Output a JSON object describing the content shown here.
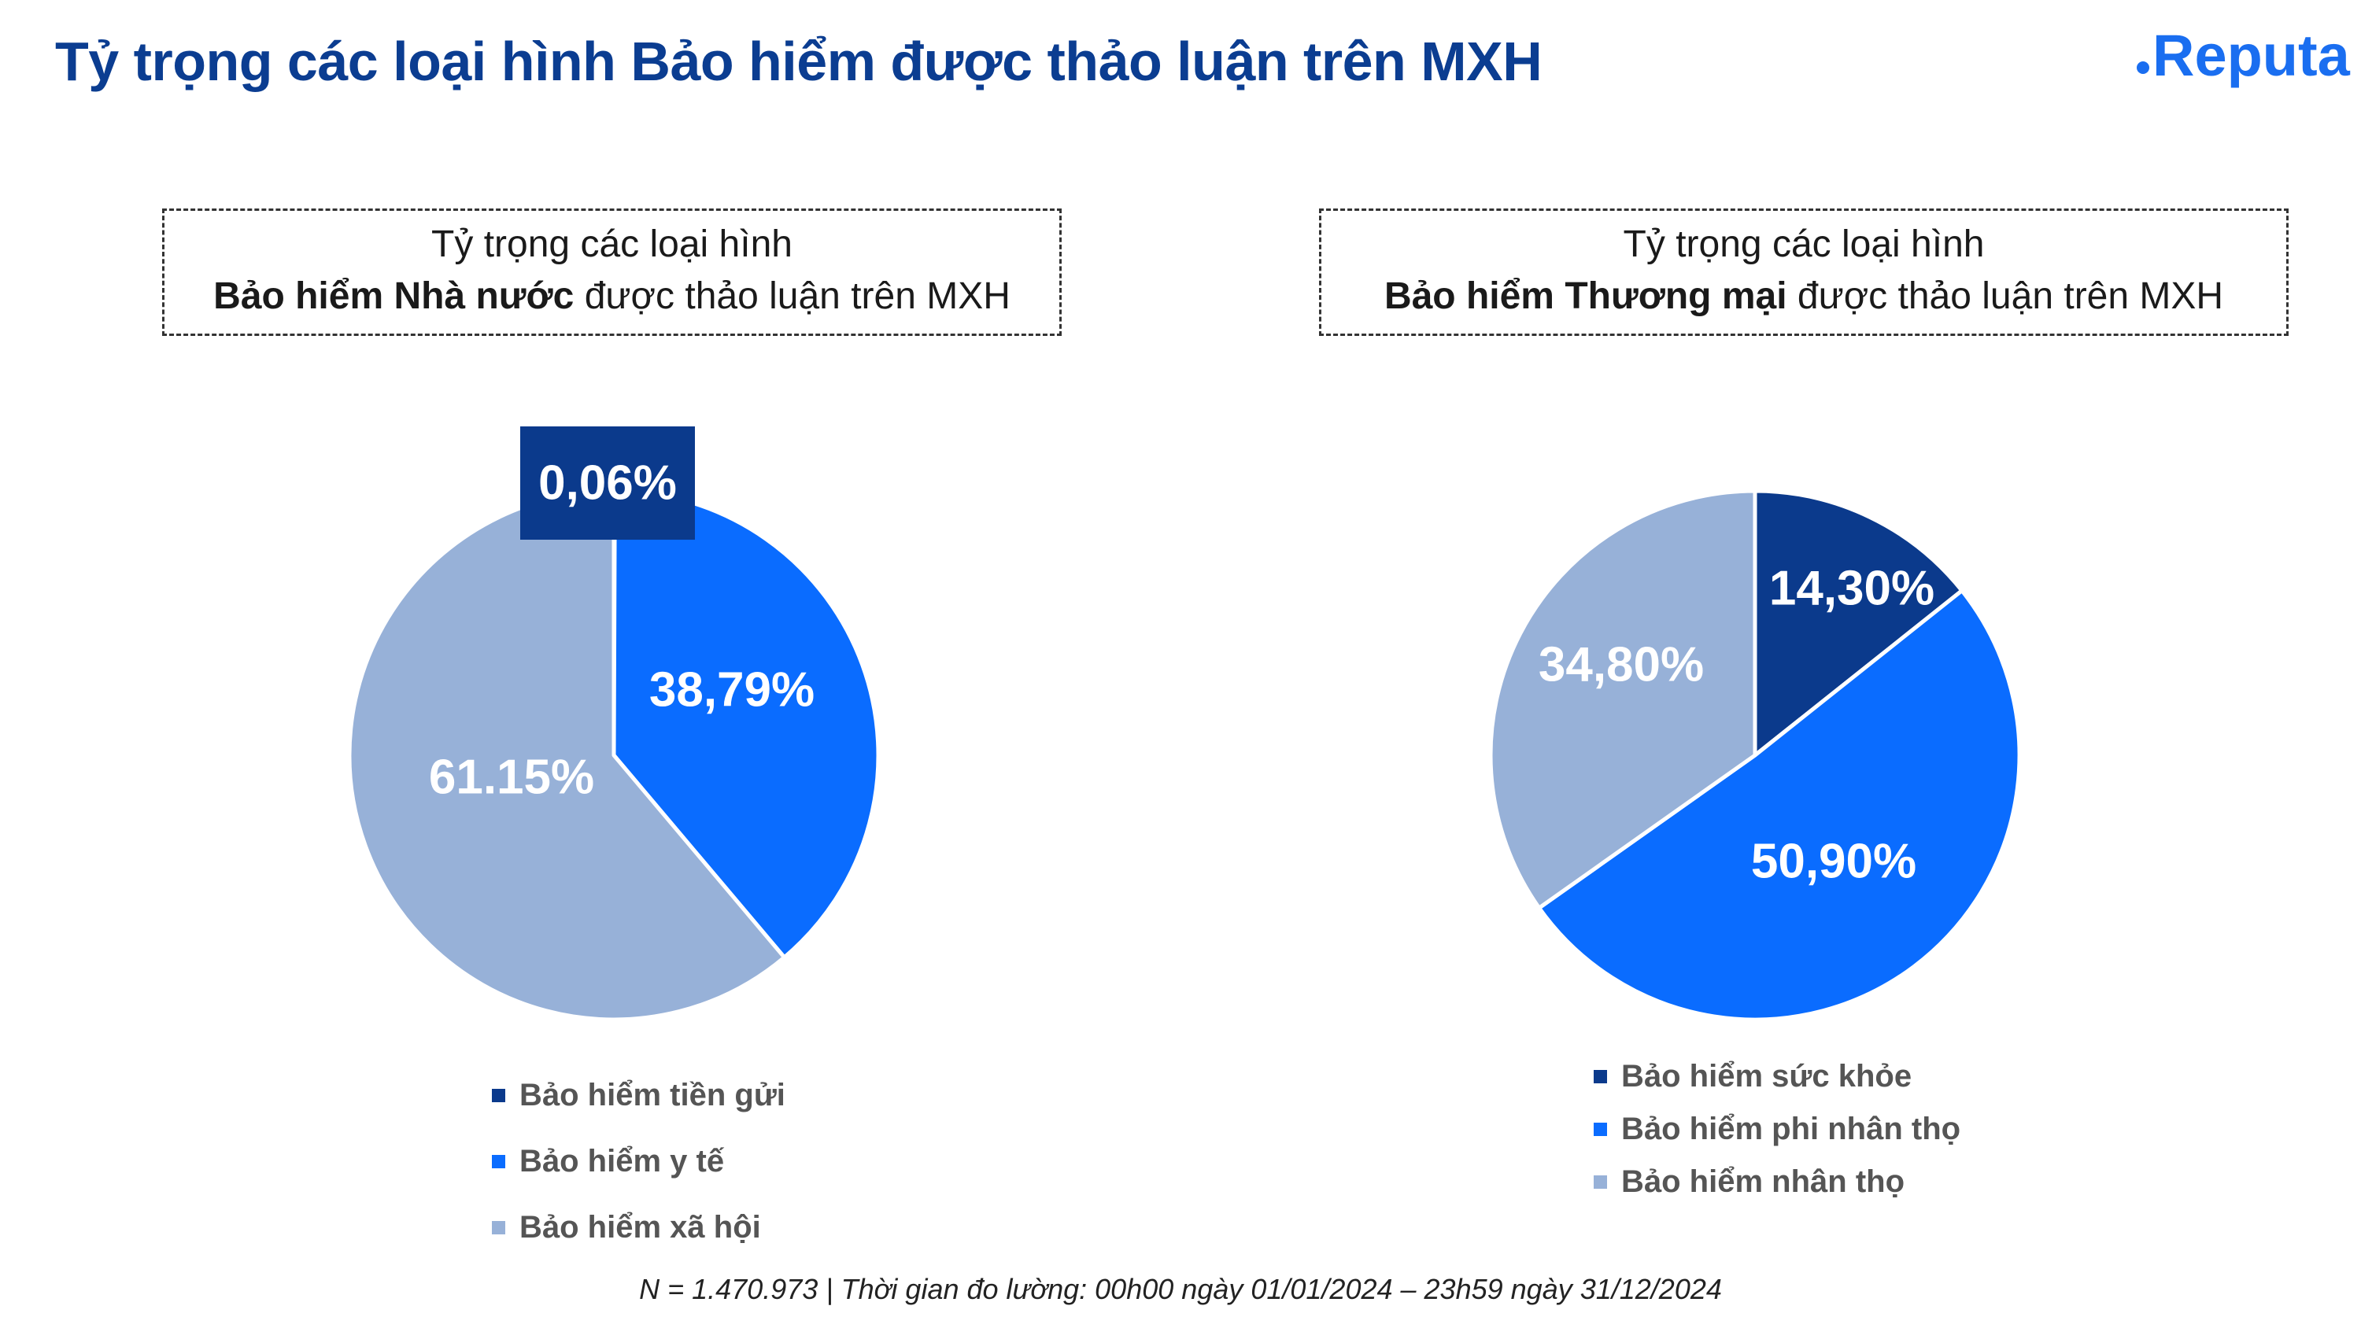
{
  "header": {
    "title": "Tỷ trọng các loại hình Bảo hiểm được thảo luận trên MXH",
    "logo_text": "Reputa"
  },
  "colors": {
    "dark_blue": "#0b3a8c",
    "bright_blue": "#0a6cff",
    "light_blue": "#97b1d8",
    "title_blue": "#0b3d91"
  },
  "panels": {
    "left": {
      "title_line1": "Tỷ trọng các loại hình",
      "title_bold": "Bảo hiểm Nhà nước",
      "title_rest": " được thảo luận trên MXH"
    },
    "right": {
      "title_line1": "Tỷ trọng các loại hình",
      "title_bold": "Bảo hiểm Thương mại",
      "title_rest": " được thảo luận trên MXH"
    }
  },
  "chart_data": [
    {
      "type": "pie",
      "title": "Tỷ trọng các loại hình Bảo hiểm Nhà nước được thảo luận trên MXH",
      "categories": [
        "Bảo hiểm tiền gửi",
        "Bảo hiểm y tế",
        "Bảo hiểm xã hội"
      ],
      "values": [
        0.06,
        38.79,
        61.15
      ],
      "labels": [
        "0,06%",
        "38,79%",
        "61.15%"
      ],
      "colors": [
        "#0b3a8c",
        "#0a6cff",
        "#97b1d8"
      ],
      "legend": "bottom"
    },
    {
      "type": "pie",
      "title": "Tỷ trọng các loại hình Bảo hiểm Thương mại được thảo luận trên MXH",
      "categories": [
        "Bảo hiểm sức khỏe",
        "Bảo hiểm phi nhân thọ",
        "Bảo hiểm nhân thọ"
      ],
      "values": [
        14.3,
        50.9,
        34.8
      ],
      "labels": [
        "14,30%",
        "50,90%",
        "34,80%"
      ],
      "colors": [
        "#0b3a8c",
        "#0a6cff",
        "#97b1d8"
      ],
      "legend": "bottom"
    }
  ],
  "footnote": "N = 1.470.973 | Thời gian đo lường: 00h00 ngày 01/01/2024 – 23h59 ngày 31/12/2024"
}
